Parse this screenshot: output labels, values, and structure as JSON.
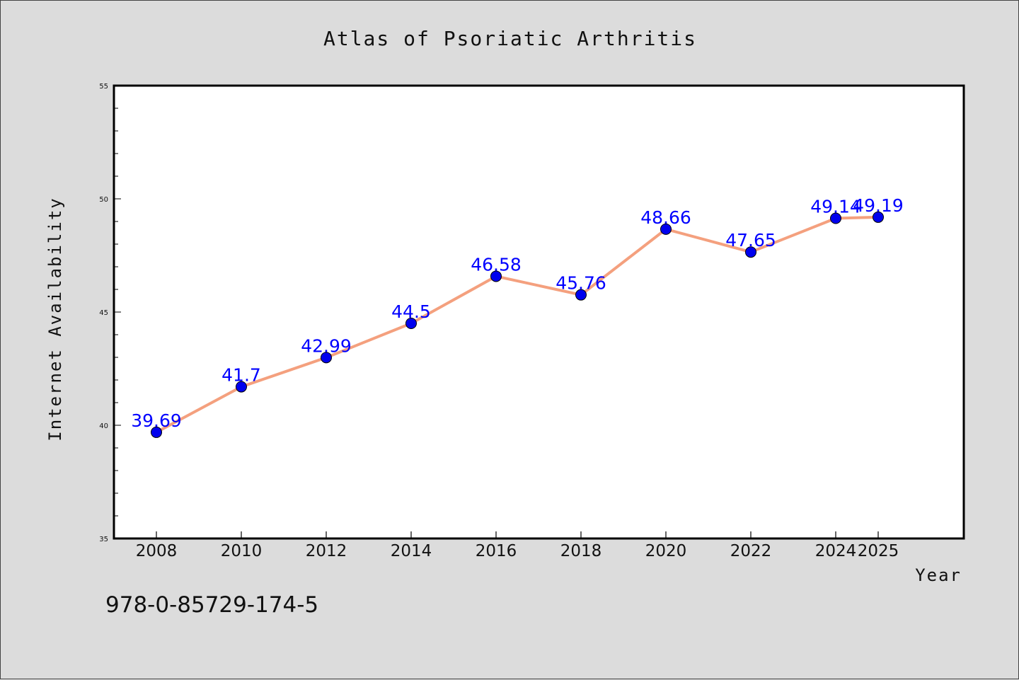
{
  "chart_data": {
    "type": "line",
    "title": "Atlas of Psoriatic Arthritis",
    "xlabel": "Year",
    "ylabel": "Internet Availability",
    "categories": [
      "2008",
      "2010",
      "2012",
      "2014",
      "2016",
      "2018",
      "2020",
      "2022",
      "2024",
      "2025"
    ],
    "series": [
      {
        "values": [
          39.69,
          41.7,
          42.99,
          44.5,
          46.58,
          45.76,
          48.66,
          47.65,
          49.14,
          49.19
        ],
        "labels": [
          "39.69",
          "41.7",
          "42.99",
          "44.5",
          "46.58",
          "45.76",
          "48.66",
          "47.65",
          "49.14",
          "49.19"
        ],
        "line_color": "#f4a07e",
        "marker_color": "#0000ee",
        "label_color": "#0000ff"
      }
    ],
    "ylim": [
      35,
      55
    ],
    "yticks": [
      "35",
      "40",
      "45",
      "50",
      "55"
    ],
    "grid": false,
    "legend": "none"
  },
  "footer": {
    "isbn": "978-0-85729-174-5"
  }
}
